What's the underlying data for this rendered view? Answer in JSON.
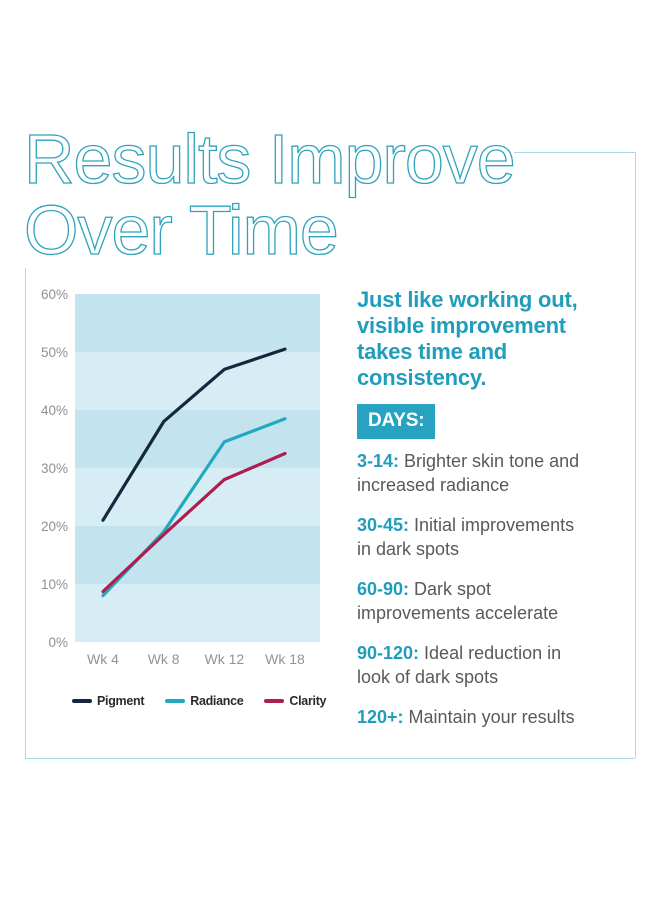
{
  "title": {
    "line1": "Results Improve",
    "line2": "Over Time"
  },
  "colors": {
    "title_teal": "#2FA3BC",
    "accent_teal": "#1F9DBA",
    "days_badge_bg": "#27A3C1",
    "frame_line": "#A8D9E6",
    "body_gray": "#58595b",
    "axis_gray": "#8e9093",
    "band_dark": "#C3E3EF",
    "band_light": "#D7EDF5"
  },
  "chart_data": {
    "type": "line",
    "categories": [
      "Wk 4",
      "Wk 8",
      "Wk 12",
      "Wk 18"
    ],
    "series": [
      {
        "name": "Pigment",
        "color": "#16263E",
        "values": [
          21,
          38,
          47,
          50.5
        ]
      },
      {
        "name": "Radiance",
        "color": "#21A9BE",
        "values": [
          8,
          19,
          34.5,
          38.5
        ]
      },
      {
        "name": "Clarity",
        "color": "#AE1E4F",
        "values": [
          8.7,
          18.5,
          28,
          32.5
        ]
      }
    ],
    "ylabel": "",
    "xlabel": "",
    "ylim": [
      0,
      60
    ],
    "yticks": [
      "60%",
      "50%",
      "40%",
      "30%",
      "20%",
      "10%",
      "0%"
    ],
    "grid": "banded-background",
    "legend_position": "bottom"
  },
  "right_column": {
    "heading": "Just like working out, visible improvement takes time and consistency.",
    "days_label": "DAYS:",
    "milestones": [
      {
        "prefix": "3-14:",
        "line1": "Brighter skin tone and",
        "line2": "increased radiance"
      },
      {
        "prefix": "30-45:",
        "line1": "Initial improvements",
        "line2": "in dark spots"
      },
      {
        "prefix": "60-90:",
        "line1": "Dark spot",
        "line2": "improvements accelerate"
      },
      {
        "prefix": "90-120:",
        "line1": "Ideal reduction in",
        "line2": "look of dark spots"
      },
      {
        "prefix": "120+:",
        "line1": "Maintain your results",
        "line2": ""
      }
    ]
  }
}
